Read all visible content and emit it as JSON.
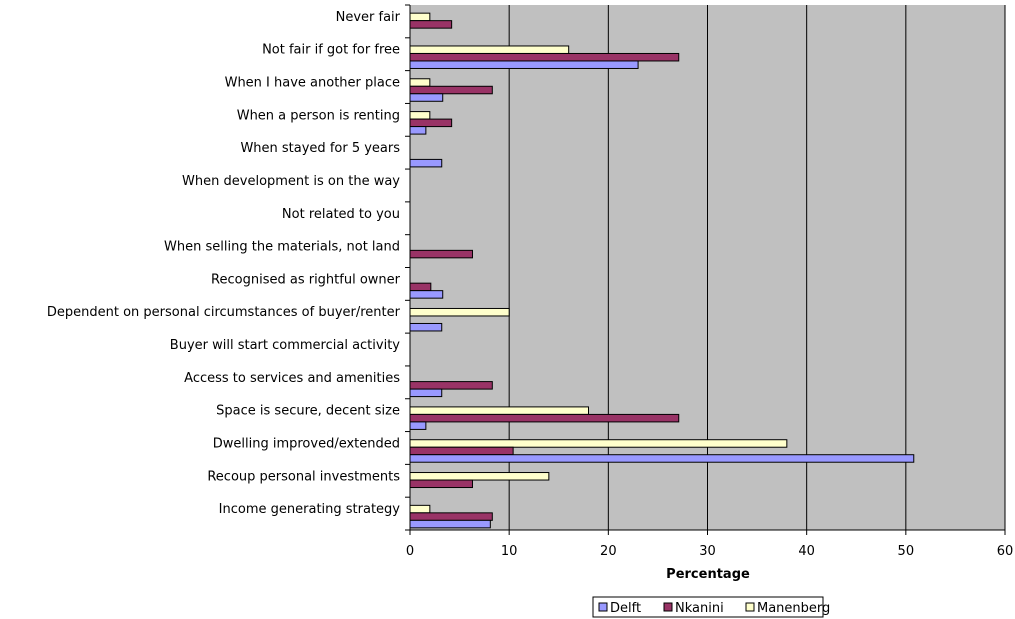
{
  "chart_data": {
    "type": "bar",
    "orientation": "horizontal",
    "title": "",
    "xlabel": "Percentage",
    "ylabel": "",
    "xlim": [
      0,
      60
    ],
    "xticks": [
      "0",
      "10",
      "20",
      "30",
      "40",
      "50",
      "60"
    ],
    "grid": "vertical",
    "legend_position": "bottom",
    "plot_background": "#c0c0c0",
    "categories": [
      "Never fair",
      "Not fair if got for free",
      "When I have another place",
      "When a person is renting",
      "When stayed for 5 years",
      "When development is on the way",
      "Not related to you",
      "When selling the materials, not land",
      "Recognised as rightful owner",
      "Dependent on personal circumstances of buyer/renter",
      "Buyer will start commercial activity",
      "Access to services and amenities",
      "Space is secure, decent size",
      "Dwelling improved/extended",
      "Recoup personal investments",
      "Income generating strategy"
    ],
    "series": [
      {
        "name": "Delft",
        "color": "#9999ff",
        "values": [
          0,
          23,
          3.3,
          1.6,
          3.2,
          0,
          0,
          0,
          3.3,
          3.2,
          0,
          3.2,
          1.6,
          50.8,
          0,
          8.1
        ]
      },
      {
        "name": "Nkanini",
        "color": "#993366",
        "values": [
          4.2,
          27.1,
          8.3,
          4.2,
          0,
          0,
          0,
          6.3,
          2.1,
          0,
          0,
          8.3,
          27.1,
          10.4,
          6.3,
          8.3
        ]
      },
      {
        "name": "Manenberg",
        "color": "#ffffcc",
        "values": [
          2,
          16,
          2,
          2,
          0,
          0,
          0,
          0,
          0,
          10,
          0,
          0,
          18,
          38,
          14,
          2
        ]
      }
    ]
  }
}
